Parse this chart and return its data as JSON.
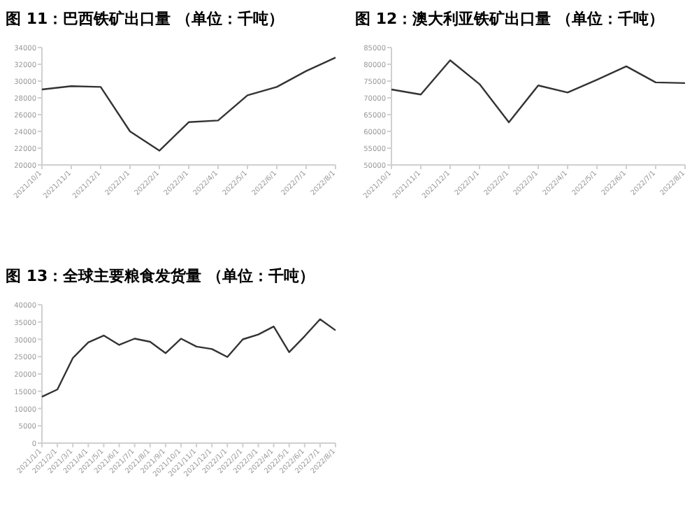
{
  "chart_data": [
    {
      "type": "line",
      "title": "图 11：巴西铁矿出口量 （单位：千吨）",
      "categories": [
        "2021/10/1",
        "2021/11/1",
        "2021/12/1",
        "2022/1/1",
        "2022/2/1",
        "2022/3/1",
        "2022/4/1",
        "2022/5/1",
        "2022/6/1",
        "2022/7/1",
        "2022/8/1"
      ],
      "series": [
        {
          "color": "#333333",
          "values": [
            29000,
            29400,
            29300,
            24000,
            21700,
            25100,
            25300,
            28300,
            29300,
            31200,
            32800
          ]
        }
      ],
      "ylim": [
        20000,
        34000
      ],
      "yticks": [
        20000,
        22000,
        24000,
        26000,
        28000,
        30000,
        32000,
        34000
      ]
    },
    {
      "type": "line",
      "title": "图 12：澳大利亚铁矿出口量 （单位：千吨）",
      "categories": [
        "2021/10/1",
        "2021/11/1",
        "2021/12/1",
        "2022/1/1",
        "2022/2/1",
        "2022/3/1",
        "2022/4/1",
        "2022/5/1",
        "2022/6/1",
        "2022/7/1",
        "2022/8/1"
      ],
      "series": [
        {
          "color": "#333333",
          "values": [
            72500,
            71000,
            81200,
            74100,
            62700,
            73700,
            71600,
            75400,
            79400,
            74600,
            74400
          ]
        }
      ],
      "ylim": [
        50000,
        85000
      ],
      "yticks": [
        50000,
        55000,
        60000,
        65000,
        70000,
        75000,
        80000,
        85000
      ]
    },
    {
      "type": "line",
      "title": "图 13：全球主要粮食发货量 （单位：千吨）",
      "categories": [
        "2021/1/1",
        "2021/2/1",
        "2021/3/1",
        "2021/4/1",
        "2021/5/1",
        "2021/6/1",
        "2021/7/1",
        "2021/8/1",
        "2021/9/1",
        "2021/10/1",
        "2021/11/1",
        "2021/12/1",
        "2022/1/1",
        "2022/2/1",
        "2022/3/1",
        "2022/4/1",
        "2022/5/1",
        "2022/6/1",
        "2022/7/1",
        "2022/8/1"
      ],
      "series": [
        {
          "color": "#333333",
          "values": [
            13400,
            15500,
            24600,
            29100,
            31100,
            28400,
            30200,
            29300,
            26000,
            30200,
            27900,
            27200,
            24900,
            30000,
            31400,
            33700,
            26300,
            30900,
            35800,
            32600
          ]
        }
      ],
      "ylim": [
        0,
        40000
      ],
      "yticks": [
        0,
        5000,
        10000,
        15000,
        20000,
        25000,
        30000,
        35000,
        40000
      ]
    }
  ]
}
